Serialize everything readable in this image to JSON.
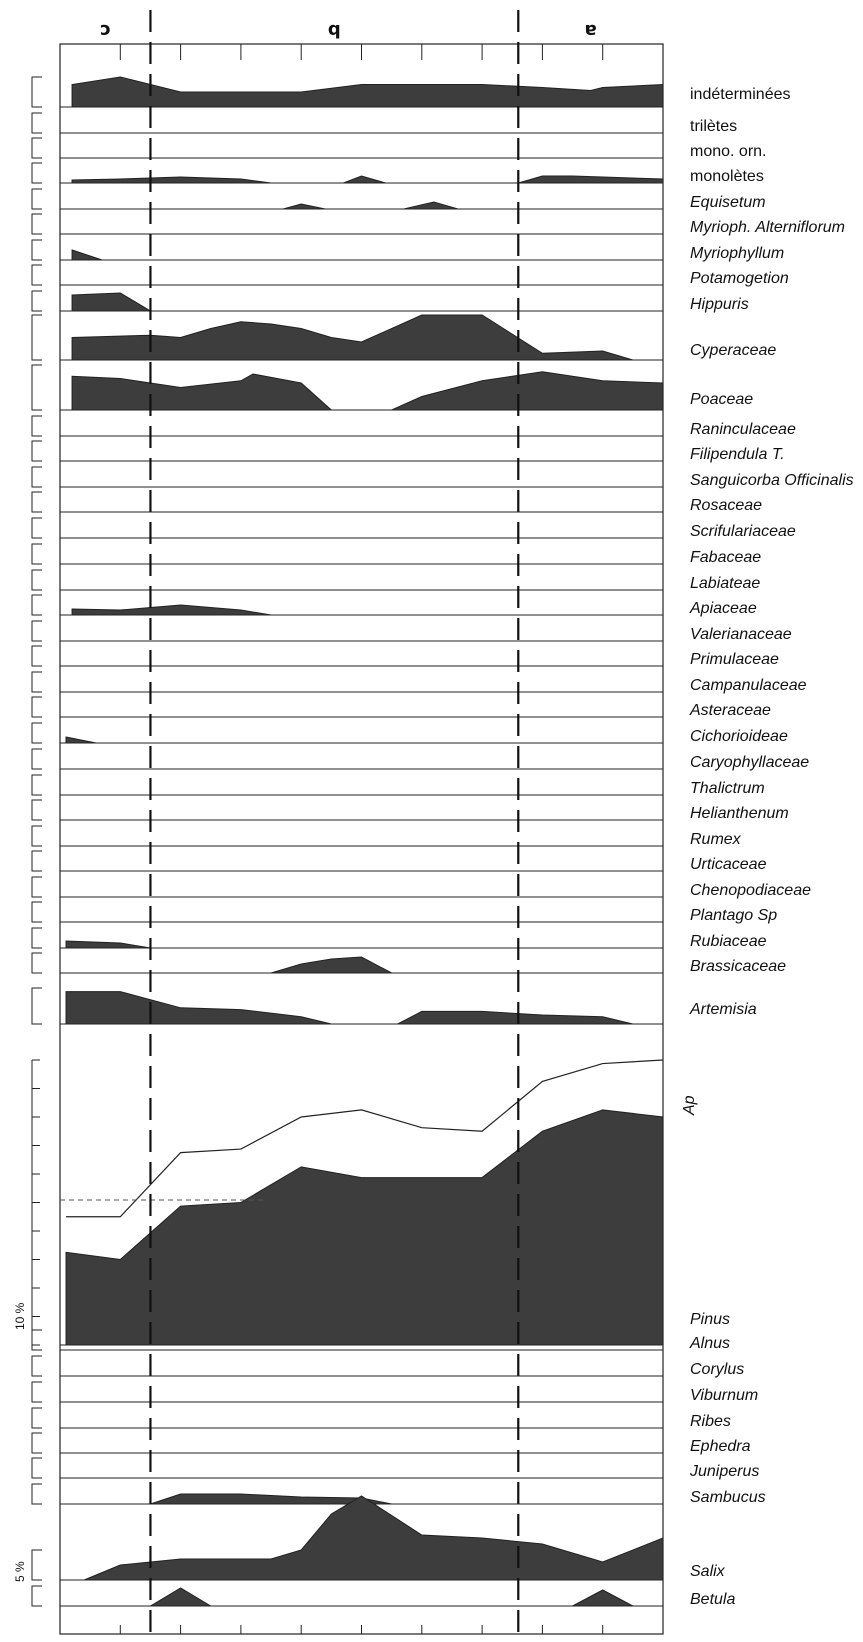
{
  "chart_data": {
    "type": "area",
    "x_axis": {
      "ticks": [
        "11",
        "10",
        "9",
        "8",
        "7",
        "6",
        "5",
        "4",
        "3",
        "2",
        "1"
      ],
      "reversed": true
    },
    "zones": [
      {
        "label": "c",
        "from": 11,
        "to": 9.5
      },
      {
        "label": "b",
        "from": 9.5,
        "to": 3.4
      },
      {
        "label": "a",
        "from": 3.4,
        "to": 1
      }
    ],
    "scale_labels": {
      "pinus": "10 %",
      "salix": "5 %"
    },
    "series": [
      {
        "name": "indéterminées",
        "italic": false,
        "values": [
          [
            10.8,
            0.75
          ],
          [
            10,
            1.0
          ],
          [
            9,
            0.5
          ],
          [
            8,
            0.5
          ],
          [
            7,
            0.5
          ],
          [
            6,
            0.75
          ],
          [
            4,
            0.75
          ],
          [
            3,
            0.65
          ],
          [
            2.2,
            0.55
          ],
          [
            2,
            0.65
          ],
          [
            1,
            0.75
          ]
        ]
      },
      {
        "name": "trilètes",
        "italic": false,
        "values": []
      },
      {
        "name": "mono. orn.",
        "italic": false,
        "values": []
      },
      {
        "name": "monolètes",
        "italic": false,
        "values": [
          [
            10.8,
            0.15
          ],
          [
            10,
            0.2
          ],
          [
            9.5,
            0.25
          ],
          [
            9,
            0.3
          ],
          [
            8.5,
            0.25
          ],
          [
            8,
            0.2
          ],
          [
            7.5,
            0.0
          ],
          [
            6.3,
            0.0
          ],
          [
            6,
            0.35
          ],
          [
            5.6,
            0.0
          ],
          [
            3.4,
            0.0
          ],
          [
            3,
            0.35
          ],
          [
            2.5,
            0.35
          ],
          [
            2,
            0.3
          ],
          [
            1,
            0.2
          ]
        ]
      },
      {
        "name": "Equisetum",
        "italic": true,
        "values": [
          [
            7.3,
            0.0
          ],
          [
            7,
            0.25
          ],
          [
            6.6,
            0.0
          ],
          [
            5.3,
            0.0
          ],
          [
            4.8,
            0.35
          ],
          [
            4.4,
            0.0
          ]
        ]
      },
      {
        "name": "Myrioph. Alterniflorum",
        "italic": true,
        "values": []
      },
      {
        "name": "Myriophyllum",
        "italic": true,
        "values": [
          [
            10.8,
            0.5
          ],
          [
            10.3,
            0.0
          ]
        ]
      },
      {
        "name": "Potamogetion",
        "italic": true,
        "values": []
      },
      {
        "name": "Hippuris",
        "italic": true,
        "values": [
          [
            10.8,
            0.8
          ],
          [
            10,
            0.9
          ],
          [
            9.5,
            0.0
          ]
        ]
      },
      {
        "name": "Cyperaceae",
        "italic": true,
        "values": [
          [
            10.8,
            0.5
          ],
          [
            9.5,
            0.55
          ],
          [
            9,
            0.5
          ],
          [
            8.5,
            0.7
          ],
          [
            8,
            0.85
          ],
          [
            7.5,
            0.8
          ],
          [
            7,
            0.7
          ],
          [
            6.5,
            0.5
          ],
          [
            6,
            0.4
          ],
          [
            5,
            1.0
          ],
          [
            4,
            1.0
          ],
          [
            3,
            0.15
          ],
          [
            2,
            0.2
          ],
          [
            1.5,
            0.0
          ]
        ]
      },
      {
        "name": "Poaceae",
        "italic": true,
        "values": [
          [
            10.8,
            0.75
          ],
          [
            10,
            0.7
          ],
          [
            9.5,
            0.6
          ],
          [
            9,
            0.5
          ],
          [
            8,
            0.65
          ],
          [
            7.8,
            0.8
          ],
          [
            7,
            0.6
          ],
          [
            6.5,
            0.0
          ],
          [
            5.5,
            0.0
          ],
          [
            5,
            0.3
          ],
          [
            4,
            0.65
          ],
          [
            3,
            0.85
          ],
          [
            2,
            0.65
          ],
          [
            1,
            0.6
          ]
        ]
      },
      {
        "name": "Raninculaceae",
        "italic": true,
        "values": []
      },
      {
        "name": "Filipendula T.",
        "italic": true,
        "values": []
      },
      {
        "name": "Sanguicorba Officinalis",
        "italic": true,
        "values": []
      },
      {
        "name": "Rosaceae",
        "italic": true,
        "values": []
      },
      {
        "name": "Scrifulariaceae",
        "italic": true,
        "values": []
      },
      {
        "name": "Fabaceae",
        "italic": true,
        "values": []
      },
      {
        "name": "Labiateae",
        "italic": true,
        "values": []
      },
      {
        "name": "Apiaceae",
        "italic": true,
        "values": [
          [
            10.8,
            0.3
          ],
          [
            10,
            0.25
          ],
          [
            9,
            0.5
          ],
          [
            8,
            0.25
          ],
          [
            7.5,
            0.0
          ]
        ]
      },
      {
        "name": "Valerianaceae",
        "italic": true,
        "values": []
      },
      {
        "name": "Primulaceae",
        "italic": true,
        "values": []
      },
      {
        "name": "Campanulaceae",
        "italic": true,
        "values": []
      },
      {
        "name": "Asteraceae",
        "italic": true,
        "values": []
      },
      {
        "name": "Cichorioideae",
        "italic": true,
        "values": [
          [
            10.9,
            0.3
          ],
          [
            10.4,
            0.0
          ]
        ]
      },
      {
        "name": "Caryophyllaceae",
        "italic": true,
        "values": []
      },
      {
        "name": "Thalictrum",
        "italic": true,
        "values": []
      },
      {
        "name": "Helianthenum",
        "italic": true,
        "values": []
      },
      {
        "name": "Rumex",
        "italic": true,
        "values": []
      },
      {
        "name": "Urticaceae",
        "italic": true,
        "values": []
      },
      {
        "name": "Chenopodiaceae",
        "italic": true,
        "values": []
      },
      {
        "name": "Plantago Sp",
        "italic": true,
        "values": []
      },
      {
        "name": "Rubiaceae",
        "italic": true,
        "values": [
          [
            10.9,
            0.35
          ],
          [
            10,
            0.25
          ],
          [
            9.5,
            0.0
          ]
        ]
      },
      {
        "name": "Brassicaceae",
        "italic": true,
        "values": [
          [
            7.5,
            0.0
          ],
          [
            7,
            0.45
          ],
          [
            6.5,
            0.7
          ],
          [
            6,
            0.8
          ],
          [
            5.5,
            0.0
          ]
        ]
      },
      {
        "name": "Artemisia",
        "italic": true,
        "values": [
          [
            10.9,
            0.9
          ],
          [
            10,
            0.9
          ],
          [
            9,
            0.45
          ],
          [
            8,
            0.4
          ],
          [
            7,
            0.2
          ],
          [
            6.5,
            0.0
          ],
          [
            5.4,
            0.0
          ],
          [
            5,
            0.35
          ],
          [
            4,
            0.35
          ],
          [
            3,
            0.25
          ],
          [
            2,
            0.2
          ],
          [
            1.5,
            0.0
          ]
        ]
      },
      {
        "name": "Pinus",
        "italic": true,
        "values": [
          [
            10.9,
            13
          ],
          [
            10,
            12
          ],
          [
            9,
            19.5
          ],
          [
            8,
            20
          ],
          [
            7,
            25
          ],
          [
            6,
            23.5
          ],
          [
            5,
            23.5
          ],
          [
            4,
            23.5
          ],
          [
            3,
            30
          ],
          [
            2,
            33
          ],
          [
            1,
            32
          ]
        ]
      },
      {
        "name": "Alnus",
        "italic": true,
        "values": []
      },
      {
        "name": "Corylus",
        "italic": true,
        "values": []
      },
      {
        "name": "Viburnum",
        "italic": true,
        "values": []
      },
      {
        "name": "Ribes",
        "italic": true,
        "values": []
      },
      {
        "name": "Ephedra",
        "italic": true,
        "values": []
      },
      {
        "name": "Juniperus",
        "italic": true,
        "values": []
      },
      {
        "name": "Sambucus",
        "italic": true,
        "values": [
          [
            9.5,
            0.0
          ],
          [
            9,
            0.5
          ],
          [
            8,
            0.5
          ],
          [
            7,
            0.35
          ],
          [
            6,
            0.3
          ],
          [
            5.5,
            0.0
          ]
        ]
      },
      {
        "name": "Salix",
        "italic": true,
        "values": [
          [
            10.6,
            0.0
          ],
          [
            10,
            0.5
          ],
          [
            9,
            0.7
          ],
          [
            7.5,
            0.7
          ],
          [
            7,
            1.0
          ],
          [
            6.5,
            2.2
          ],
          [
            6,
            2.8
          ],
          [
            5,
            1.5
          ],
          [
            4,
            1.4
          ],
          [
            3,
            1.2
          ],
          [
            2,
            0.6
          ],
          [
            1,
            1.4
          ]
        ]
      },
      {
        "name": "Betula",
        "italic": true,
        "values": [
          [
            9.5,
            0.0
          ],
          [
            9,
            0.9
          ],
          [
            8.5,
            0.0
          ],
          [
            2.5,
            0.0
          ],
          [
            2,
            0.8
          ],
          [
            1.5,
            0.0
          ]
        ]
      }
    ],
    "ap_curve": {
      "name": "Ap",
      "values": [
        [
          10.9,
          18
        ],
        [
          10,
          18
        ],
        [
          9,
          27
        ],
        [
          8,
          27.5
        ],
        [
          7,
          32
        ],
        [
          6,
          33
        ],
        [
          5,
          30.5
        ],
        [
          4,
          30
        ],
        [
          3,
          37
        ],
        [
          2,
          39.5
        ],
        [
          1,
          40
        ]
      ]
    }
  }
}
